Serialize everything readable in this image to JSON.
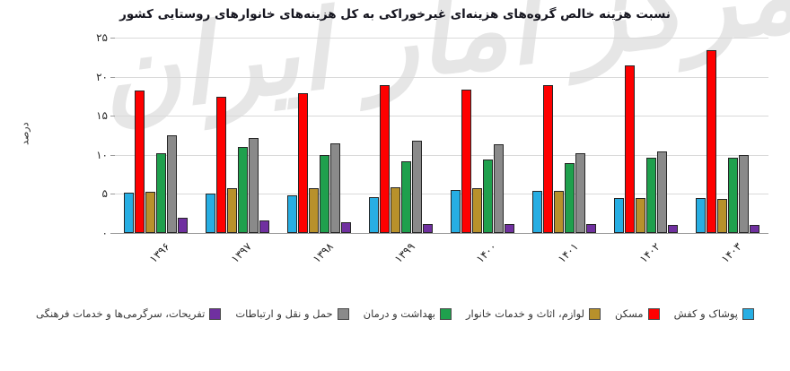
{
  "title": "نسبت هزینه خالص گروه‌های هزینه‌ای غیرخوراکی به کل هزینه‌های خانوارهای روستایی کشور",
  "watermark": "مرکز آمار ایران",
  "chart_data": {
    "type": "bar",
    "title": "نسبت هزینه خالص گروه‌های هزینه‌ای غیرخوراکی به کل هزینه‌های خانوارهای روستایی کشور",
    "xlabel": "",
    "ylabel": "درصد",
    "ylim": [
      0,
      25
    ],
    "grid": true,
    "legend_position": "bottom",
    "y_ticks": [
      {
        "value": 0,
        "label": "۰"
      },
      {
        "value": 5,
        "label": "۵"
      },
      {
        "value": 10,
        "label": "۱۰"
      },
      {
        "value": 15,
        "label": "۱۵"
      },
      {
        "value": 20,
        "label": "۲۰"
      },
      {
        "value": 25,
        "label": "۲۵"
      }
    ],
    "categories": [
      "۱۳۹۶",
      "۱۳۹۷",
      "۱۳۹۸",
      "۱۳۹۹",
      "۱۴۰۰",
      "۱۴۰۱",
      "۱۴۰۲",
      "۱۴۰۳"
    ],
    "categories_western": [
      1396,
      1397,
      1398,
      1399,
      1400,
      1401,
      1402,
      1403
    ],
    "series": [
      {
        "name": "پوشاک و کفش",
        "color": "#27AEE3",
        "values": [
          5.2,
          5.0,
          4.8,
          4.6,
          5.5,
          5.4,
          4.5,
          4.5
        ]
      },
      {
        "name": "مسکن",
        "color": "#FE0000",
        "values": [
          18.2,
          17.4,
          17.9,
          18.9,
          18.4,
          18.9,
          21.5,
          23.4
        ]
      },
      {
        "name": "لوازم، اثاث و خدمات خانوار",
        "color": "#B8912B",
        "values": [
          5.3,
          5.7,
          5.7,
          5.9,
          5.7,
          5.4,
          4.5,
          4.4
        ]
      },
      {
        "name": "بهداشت و درمان",
        "color": "#1FA04D",
        "values": [
          10.2,
          11.0,
          10.0,
          9.2,
          9.4,
          9.0,
          9.6,
          9.6
        ]
      },
      {
        "name": "حمل و نقل و ارتباطات",
        "color": "#8A8A8A",
        "values": [
          12.5,
          12.2,
          11.5,
          11.8,
          11.4,
          10.2,
          10.4,
          10.0
        ]
      },
      {
        "name": "تفریحات، سرگرمی‌ها و خدمات فرهنگی",
        "color": "#7030A0",
        "values": [
          1.9,
          1.6,
          1.4,
          1.2,
          1.2,
          1.1,
          1.0,
          1.0
        ]
      }
    ]
  }
}
